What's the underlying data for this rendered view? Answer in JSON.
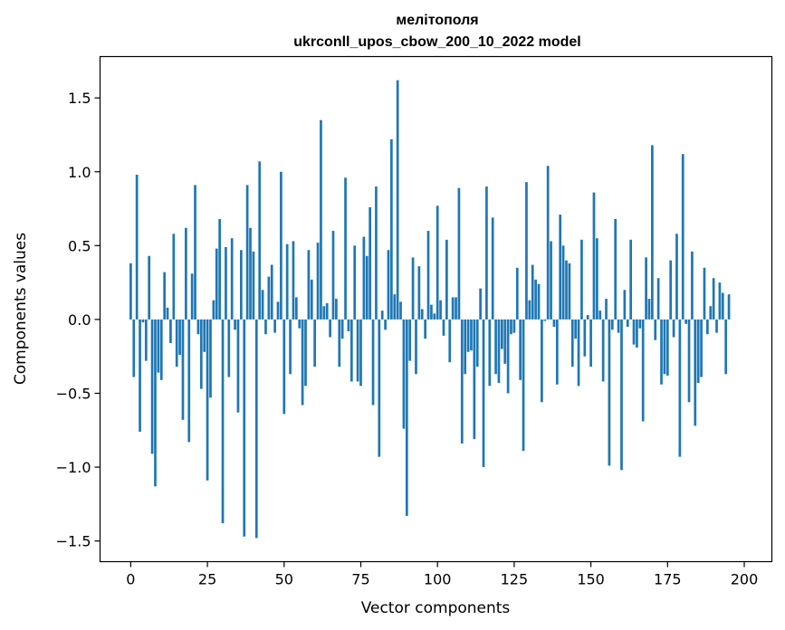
{
  "chart_data": {
    "type": "bar",
    "title": "мелітополя",
    "subtitle": "ukrconll_upos_cbow_200_10_2022 model",
    "xlabel": "Vector components",
    "ylabel": "Components values",
    "xlim": [
      -10,
      209
    ],
    "ylim": [
      -1.64,
      1.78
    ],
    "x_ticks": [
      0,
      25,
      50,
      75,
      100,
      125,
      150,
      175,
      200
    ],
    "y_ticks": [
      -1.5,
      -1.0,
      -0.5,
      0.0,
      0.5,
      1.0,
      1.5
    ],
    "x_tick_labels": [
      "0",
      "25",
      "50",
      "75",
      "100",
      "125",
      "150",
      "175",
      "200"
    ],
    "y_tick_labels": [
      "−1.5",
      "−1.0",
      "−0.5",
      "0.0",
      "0.5",
      "1.0",
      "1.5"
    ],
    "bar_color": "#1f77b4",
    "grid": false,
    "values": [
      0.38,
      -0.39,
      0.98,
      -0.76,
      -0.02,
      -0.28,
      0.43,
      -0.91,
      -1.13,
      -0.36,
      -0.41,
      0.32,
      0.08,
      -0.16,
      0.58,
      -0.32,
      -0.24,
      -0.68,
      0.62,
      -0.83,
      0.31,
      0.91,
      -0.1,
      -0.47,
      -0.22,
      -1.09,
      -0.53,
      0.13,
      0.48,
      0.68,
      -1.38,
      0.49,
      -0.39,
      0.55,
      -0.07,
      -0.63,
      0.47,
      -1.47,
      0.91,
      0.62,
      0.46,
      -1.48,
      1.07,
      0.2,
      -0.1,
      0.29,
      0.37,
      -0.09,
      0.12,
      1.0,
      -0.64,
      0.51,
      -0.37,
      0.53,
      0.15,
      -0.06,
      -0.58,
      -0.45,
      0.47,
      0.27,
      -0.32,
      0.52,
      1.35,
      0.09,
      0.11,
      -0.12,
      0.6,
      0.14,
      -0.32,
      -0.13,
      0.96,
      -0.08,
      -0.42,
      0.5,
      -0.42,
      -0.45,
      0.56,
      0.43,
      0.76,
      -0.58,
      0.9,
      -0.93,
      0.06,
      -0.07,
      0.47,
      1.22,
      0.17,
      1.62,
      0.12,
      -0.74,
      -1.33,
      -0.28,
      0.42,
      -0.37,
      0.36,
      0.07,
      -0.13,
      0.6,
      0.1,
      0.04,
      0.77,
      0.13,
      -0.11,
      0.54,
      -0.29,
      0.15,
      0.15,
      0.89,
      -0.84,
      -0.37,
      -0.22,
      -0.21,
      -0.81,
      -0.32,
      0.21,
      -1.0,
      0.9,
      -0.45,
      0.69,
      -0.37,
      -0.43,
      -0.2,
      -0.3,
      -0.5,
      -0.1,
      -0.09,
      0.35,
      -0.41,
      -0.89,
      0.93,
      0.13,
      0.37,
      0.27,
      0.24,
      -0.56,
      -0.01,
      1.04,
      0.53,
      -0.05,
      -0.44,
      0.71,
      0.5,
      0.4,
      0.38,
      -0.32,
      -0.13,
      -0.45,
      0.54,
      -0.25,
      0.03,
      -0.32,
      0.86,
      0.55,
      0.06,
      -0.42,
      0.14,
      -0.99,
      -0.07,
      0.68,
      -0.09,
      -1.02,
      0.2,
      -0.05,
      0.54,
      -0.17,
      -0.19,
      -0.06,
      -0.69,
      0.42,
      0.14,
      1.18,
      -0.14,
      0.28,
      -0.44,
      -0.37,
      -0.38,
      0.4,
      -0.12,
      0.58,
      -0.93,
      1.12,
      -0.03,
      -0.56,
      0.46,
      -0.72,
      -0.43,
      -0.39,
      0.35,
      -0.1,
      0.09,
      0.28,
      -0.09,
      0.25,
      0.18,
      -0.37,
      0.17
    ]
  }
}
